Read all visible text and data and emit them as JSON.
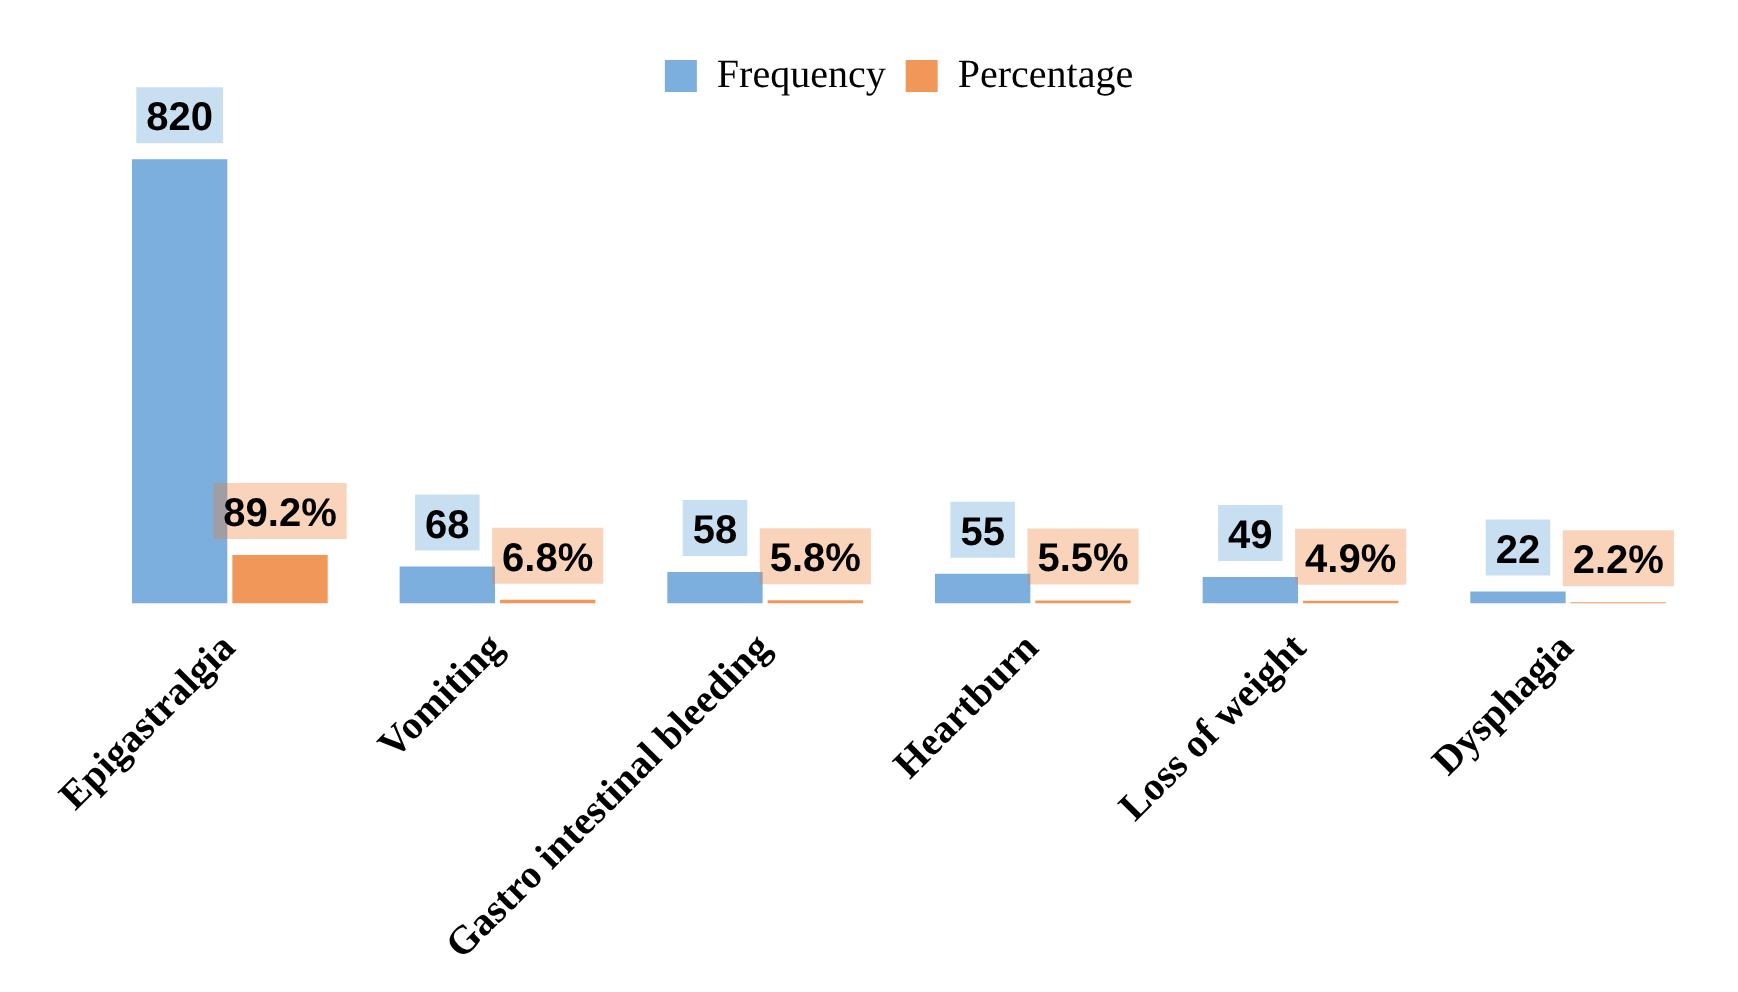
{
  "chart_data": {
    "type": "bar",
    "categories": [
      "Epigastralgia",
      "Vomiting",
      "Gastro intestinal bleeding",
      "Heartburn",
      "Loss of weight",
      "Dysphagia"
    ],
    "series": [
      {
        "name": "Frequency",
        "color": "#5b9bd5",
        "values": [
          820,
          68,
          58,
          55,
          49,
          22
        ],
        "value_labels": [
          "820",
          "68",
          "58",
          "55",
          "49",
          "22"
        ]
      },
      {
        "name": "Percentage",
        "color": "#ed7d31",
        "values": [
          89.2,
          6.8,
          5.8,
          5.5,
          4.9,
          2.2
        ],
        "value_labels": [
          "89.2%",
          "6.8%",
          "5.8%",
          "5.5%",
          "4.9%",
          "2.2%"
        ]
      }
    ],
    "legend": "top",
    "grid": false
  }
}
